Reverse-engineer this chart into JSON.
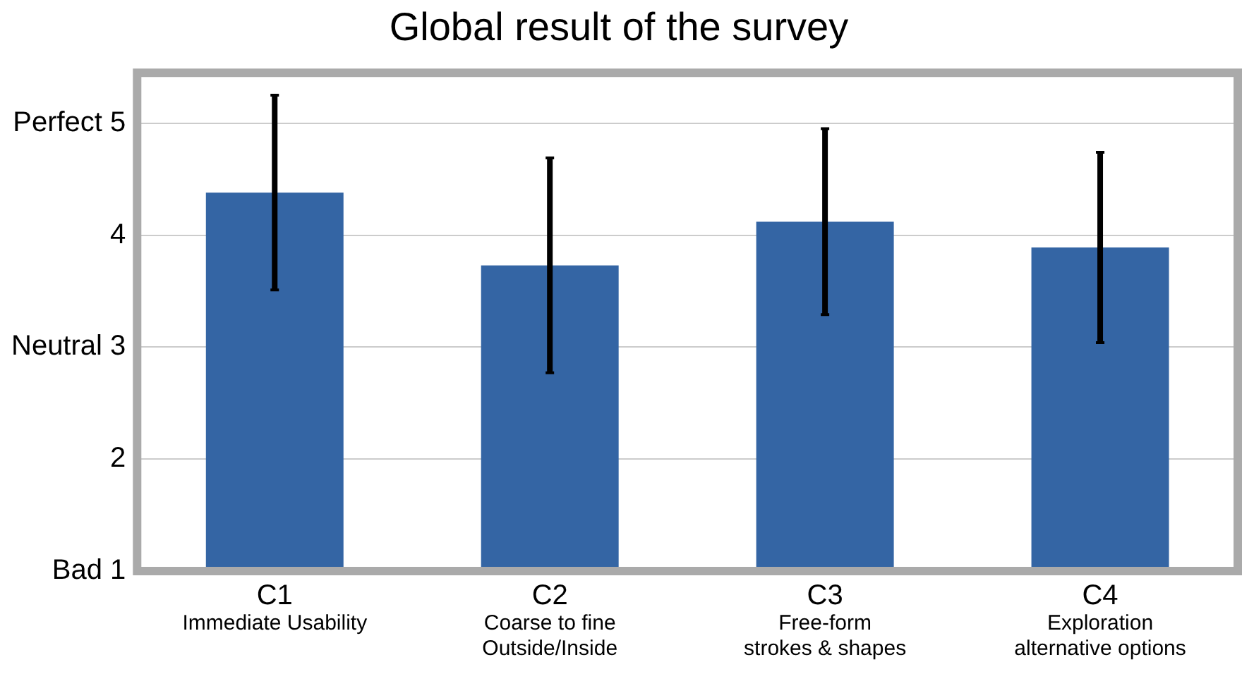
{
  "chart_data": {
    "type": "bar",
    "title": "Global result of the survey",
    "categories": [
      "C1\nImmediate Usability",
      "C2\nCoarse to fine\nOutside/Inside",
      "C3\nFree-form\nstrokes & shapes",
      "C4\nExploration\nalternative options"
    ],
    "values": [
      4.38,
      3.73,
      4.12,
      3.89
    ],
    "errors": [
      0.87,
      0.96,
      0.83,
      0.85
    ],
    "color": "#3465a4",
    "ylim": [
      1,
      5.45
    ],
    "yticks": [
      {
        "value": 1,
        "label": "Bad 1"
      },
      2,
      {
        "value": 3,
        "label": "Neutral 3"
      },
      4,
      {
        "value": 5,
        "label": "Perfect 5"
      }
    ],
    "grid": "y"
  }
}
